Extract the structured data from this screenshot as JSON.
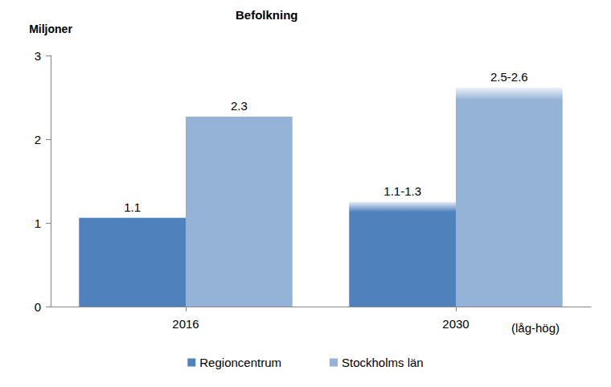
{
  "chart_data": {
    "type": "bar",
    "title": "Befolkning",
    "y_label": "Miljoner",
    "categories": [
      "2016",
      "2030"
    ],
    "annotations": [
      "(låg-hög)"
    ],
    "series": [
      {
        "name": "Regioncentrum",
        "color": "#4f81bd",
        "values": [
          1.06,
          1.25
        ],
        "low": [
          null,
          1.13
        ],
        "value_labels": [
          "1.1",
          "1.1-1.3"
        ]
      },
      {
        "name": "Stockholms län",
        "color": "#95b3d7",
        "values": [
          2.27,
          2.62
        ],
        "low": [
          null,
          2.47
        ],
        "value_labels": [
          "2.3",
          "2.5-2.6"
        ]
      }
    ],
    "ylim": [
      0,
      3
    ],
    "yticks": [
      0,
      1,
      2,
      3
    ],
    "grid": false,
    "data_labels": true,
    "legend": "bottom"
  }
}
